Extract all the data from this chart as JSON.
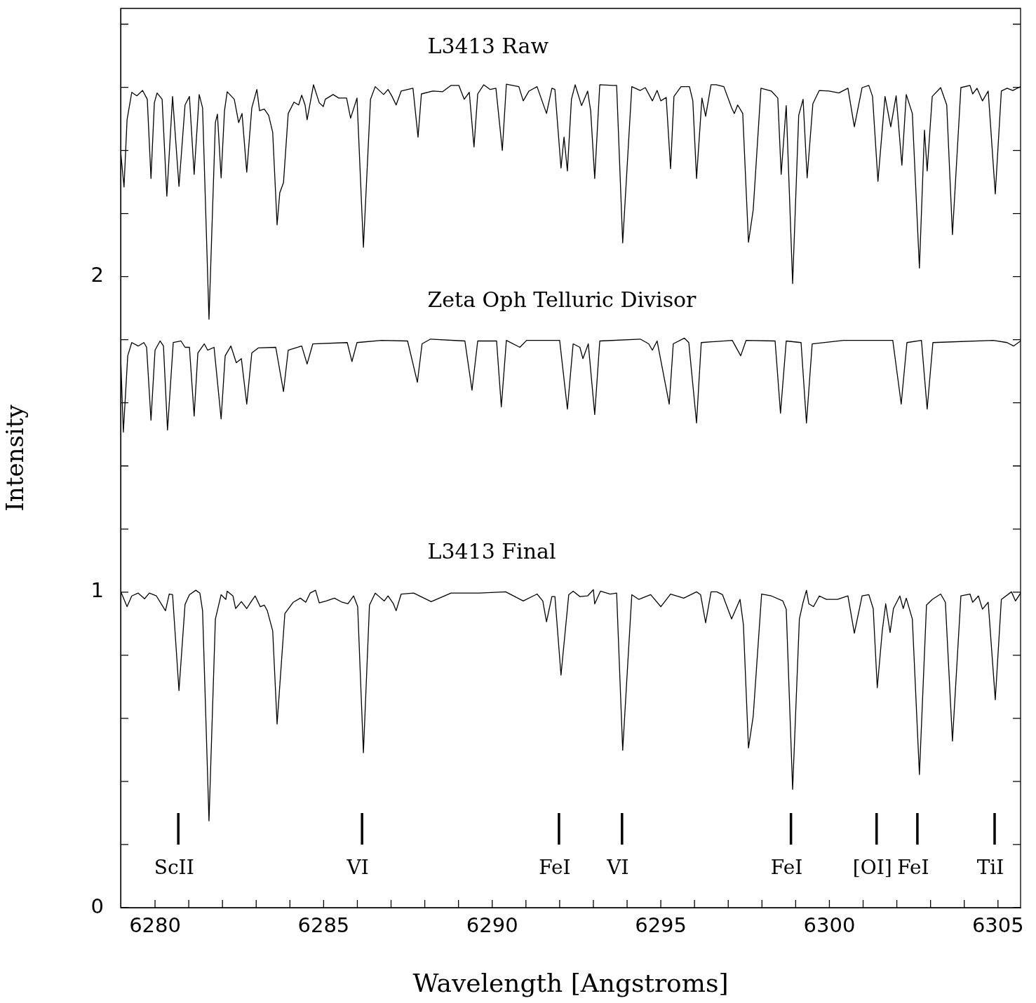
{
  "chart_data": {
    "type": "line",
    "xlabel": "Wavelength [Angstroms]",
    "ylabel": "Intensity",
    "xlim": [
      6278.98,
      6305.67
    ],
    "ylim": [
      0,
      2.85
    ],
    "xticks": [
      6280,
      {
        "value": 6281,
        "label": null
      },
      {
        "value": 6282,
        "label": null
      },
      {
        "value": 6283,
        "label": null
      },
      {
        "value": 6284,
        "label": null
      },
      6285,
      {
        "value": 6286,
        "label": null
      },
      {
        "value": 6287,
        "label": null
      },
      {
        "value": 6288,
        "label": null
      },
      {
        "value": 6289,
        "label": null
      },
      6290,
      {
        "value": 6291,
        "label": null
      },
      {
        "value": 6292,
        "label": null
      },
      {
        "value": 6293,
        "label": null
      },
      {
        "value": 6294,
        "label": null
      },
      6295,
      {
        "value": 6296,
        "label": null
      },
      {
        "value": 6297,
        "label": null
      },
      {
        "value": 6298,
        "label": null
      },
      {
        "value": 6299,
        "label": null
      },
      6300,
      {
        "value": 6301,
        "label": null
      },
      {
        "value": 6302,
        "label": null
      },
      {
        "value": 6303,
        "label": null
      },
      {
        "value": 6304,
        "label": null
      },
      6305
    ],
    "yticks": [
      0,
      {
        "value": 0.2,
        "label": null
      },
      {
        "value": 0.4,
        "label": null
      },
      {
        "value": 0.6,
        "label": null
      },
      {
        "value": 0.8,
        "label": null
      },
      1,
      {
        "value": 1.2,
        "label": null
      },
      {
        "value": 1.4,
        "label": null
      },
      {
        "value": 1.6,
        "label": null
      },
      {
        "value": 1.8,
        "label": null
      },
      2,
      {
        "value": 2.2,
        "label": null
      },
      {
        "value": 2.4,
        "label": null
      },
      {
        "value": 2.6,
        "label": null
      },
      {
        "value": 2.8,
        "label": null
      }
    ],
    "grid": false,
    "legend": false,
    "marker": "none",
    "line_style": "solid",
    "ref_lines": [
      {
        "axis": "x",
        "value": 6280.69,
        "label": "ScII"
      },
      {
        "axis": "x",
        "value": 6286.14,
        "label": "VI"
      },
      {
        "axis": "x",
        "value": 6291.98,
        "label": "FeI"
      },
      {
        "axis": "x",
        "value": 6293.85,
        "label": "VI"
      },
      {
        "axis": "x",
        "value": 6298.86,
        "label": "FeI"
      },
      {
        "axis": "x",
        "value": 6301.4,
        "label": "[OI]"
      },
      {
        "axis": "x",
        "value": 6302.61,
        "label": "FeI"
      },
      {
        "axis": "x",
        "value": 6304.9,
        "label": "TiI"
      }
    ],
    "series": [
      {
        "name": "L3413 Raw",
        "color": "#000000",
        "x": [
          6278.98,
          6279.08,
          6279.17,
          6279.31,
          6279.46,
          6279.63,
          6279.77,
          6279.88,
          6279.98,
          6280.06,
          6280.21,
          6280.35,
          6280.52,
          6280.71,
          6280.89,
          6281.02,
          6281.16,
          6281.31,
          6281.41,
          6281.6,
          6281.79,
          6281.85,
          6281.96,
          6282.06,
          6282.14,
          6282.35,
          6282.48,
          6282.58,
          6282.72,
          6282.87,
          6283.02,
          6283.1,
          6283.24,
          6283.37,
          6283.49,
          6283.62,
          6283.7,
          6283.81,
          6283.95,
          6284.12,
          6284.26,
          6284.35,
          6284.45,
          6284.51,
          6284.7,
          6284.87,
          6284.99,
          6285.05,
          6285.28,
          6285.45,
          6285.68,
          6285.8,
          6285.99,
          6286.18,
          6286.39,
          6286.53,
          6286.78,
          6286.91,
          6287.03,
          6287.15,
          6287.3,
          6287.65,
          6287.8,
          6287.9,
          6288.24,
          6288.53,
          6288.78,
          6289.01,
          6289.17,
          6289.32,
          6289.46,
          6289.57,
          6289.75,
          6289.94,
          6290.11,
          6290.3,
          6290.42,
          6290.79,
          6290.92,
          6291.09,
          6291.33,
          6291.61,
          6291.77,
          6291.86,
          6292.04,
          6292.13,
          6292.23,
          6292.35,
          6292.46,
          6292.65,
          6292.83,
          6292.92,
          6293.04,
          6293.19,
          6293.58,
          6293.69,
          6293.87,
          6294.14,
          6294.39,
          6294.54,
          6294.75,
          6294.89,
          6295,
          6295.16,
          6295.29,
          6295.39,
          6295.6,
          6295.85,
          6295.95,
          6296.06,
          6296.22,
          6296.33,
          6296.49,
          6296.64,
          6296.87,
          6297.1,
          6297.18,
          6297.28,
          6297.43,
          6297.6,
          6297.74,
          6297.97,
          6298.28,
          6298.47,
          6298.57,
          6298.72,
          6298.91,
          6299.09,
          6299.22,
          6299.34,
          6299.51,
          6299.7,
          6299.99,
          6300.28,
          6300.55,
          6300.74,
          6300.97,
          6301.17,
          6301.28,
          6301.44,
          6301.65,
          6301.82,
          6301.98,
          6302.15,
          6302.28,
          6302.46,
          6302.67,
          6302.82,
          6302.9,
          6303.05,
          6303.3,
          6303.48,
          6303.65,
          6303.9,
          6304.17,
          6304.25,
          6304.38,
          6304.54,
          6304.71,
          6304.92,
          6305.1,
          6305.27,
          6305.44,
          6305.67
        ],
        "values": [
          2.397,
          2.284,
          2.497,
          2.584,
          2.573,
          2.59,
          2.562,
          2.311,
          2.551,
          2.582,
          2.562,
          2.255,
          2.571,
          2.286,
          2.544,
          2.571,
          2.324,
          2.577,
          2.535,
          1.865,
          2.488,
          2.515,
          2.313,
          2.526,
          2.586,
          2.562,
          2.488,
          2.517,
          2.331,
          2.535,
          2.593,
          2.526,
          2.531,
          2.511,
          2.457,
          2.164,
          2.266,
          2.298,
          2.517,
          2.553,
          2.544,
          2.575,
          2.544,
          2.497,
          2.608,
          2.551,
          2.539,
          2.562,
          2.577,
          2.566,
          2.566,
          2.502,
          2.566,
          2.093,
          2.562,
          2.602,
          2.577,
          2.593,
          2.571,
          2.544,
          2.588,
          2.597,
          2.442,
          2.579,
          2.588,
          2.586,
          2.606,
          2.606,
          2.562,
          2.584,
          2.411,
          2.579,
          2.608,
          2.593,
          2.597,
          2.4,
          2.61,
          2.602,
          2.557,
          2.588,
          2.602,
          2.517,
          2.597,
          2.593,
          2.344,
          2.442,
          2.335,
          2.562,
          2.608,
          2.542,
          2.588,
          2.526,
          2.311,
          2.608,
          2.606,
          2.606,
          2.107,
          2.602,
          2.59,
          2.599,
          2.557,
          2.59,
          2.557,
          2.568,
          2.342,
          2.571,
          2.602,
          2.602,
          2.557,
          2.311,
          2.566,
          2.508,
          2.608,
          2.608,
          2.602,
          2.535,
          2.517,
          2.544,
          2.517,
          2.109,
          2.211,
          2.597,
          2.588,
          2.566,
          2.324,
          2.542,
          1.978,
          2.511,
          2.562,
          2.313,
          2.548,
          2.59,
          2.588,
          2.582,
          2.597,
          2.475,
          2.599,
          2.606,
          2.571,
          2.302,
          2.571,
          2.475,
          2.573,
          2.353,
          2.577,
          2.517,
          2.027,
          2.464,
          2.335,
          2.571,
          2.599,
          2.544,
          2.133,
          2.599,
          2.606,
          2.579,
          2.597,
          2.557,
          2.588,
          2.262,
          2.588,
          2.597,
          2.59,
          2.602
        ]
      },
      {
        "name": "Zeta Oph Telluric Divisor",
        "color": "#000000",
        "x": [
          6278.98,
          6279.06,
          6279.19,
          6279.31,
          6279.5,
          6279.67,
          6279.75,
          6279.88,
          6280,
          6280.15,
          6280.25,
          6280.37,
          6280.54,
          6280.77,
          6280.89,
          6281.02,
          6281.16,
          6281.27,
          6281.46,
          6281.56,
          6281.75,
          6281.96,
          6282.08,
          6282.25,
          6282.41,
          6282.56,
          6282.72,
          6282.87,
          6283.06,
          6283.58,
          6283.81,
          6283.95,
          6284.35,
          6284.51,
          6284.68,
          6285.7,
          6285.84,
          6285.99,
          6286.72,
          6287.49,
          6287.78,
          6287.92,
          6288.17,
          6289.19,
          6289.4,
          6289.57,
          6290.13,
          6290.27,
          6290.42,
          6290.82,
          6291.02,
          6292,
          6292.23,
          6292.4,
          6292.6,
          6292.69,
          6292.85,
          6293.04,
          6293.19,
          6294.39,
          6294.64,
          6294.75,
          6294.89,
          6295.25,
          6295.37,
          6295.7,
          6295.83,
          6296.06,
          6296.2,
          6297.12,
          6297.37,
          6297.53,
          6298.39,
          6298.55,
          6298.72,
          6299.16,
          6299.32,
          6299.49,
          6300.42,
          6300.94,
          6301.88,
          6302.13,
          6302.3,
          6302.73,
          6302.9,
          6303.07,
          6304.86,
          6305.27,
          6305.46,
          6305.67
        ],
        "values": [
          1.749,
          1.507,
          1.749,
          1.791,
          1.78,
          1.791,
          1.776,
          1.545,
          1.767,
          1.796,
          1.78,
          1.514,
          1.791,
          1.796,
          1.776,
          1.776,
          1.558,
          1.758,
          1.787,
          1.767,
          1.776,
          1.549,
          1.749,
          1.78,
          1.727,
          1.74,
          1.596,
          1.758,
          1.774,
          1.776,
          1.636,
          1.767,
          1.78,
          1.723,
          1.787,
          1.791,
          1.731,
          1.791,
          1.798,
          1.796,
          1.665,
          1.787,
          1.802,
          1.796,
          1.64,
          1.796,
          1.796,
          1.587,
          1.798,
          1.776,
          1.798,
          1.798,
          1.58,
          1.787,
          1.776,
          1.74,
          1.787,
          1.563,
          1.796,
          1.802,
          1.787,
          1.767,
          1.796,
          1.596,
          1.787,
          1.805,
          1.791,
          1.536,
          1.791,
          1.798,
          1.749,
          1.798,
          1.796,
          1.567,
          1.796,
          1.791,
          1.536,
          1.787,
          1.798,
          1.798,
          1.798,
          1.596,
          1.791,
          1.798,
          1.58,
          1.791,
          1.798,
          1.791,
          1.78,
          1.796
        ]
      },
      {
        "name": "L3413 Final",
        "color": "#000000",
        "x": [
          6278.98,
          6279.17,
          6279.31,
          6279.5,
          6279.69,
          6279.83,
          6280.04,
          6280.31,
          6280.42,
          6280.52,
          6280.71,
          6280.89,
          6281.02,
          6281.21,
          6281.33,
          6281.41,
          6281.6,
          6281.79,
          6281.96,
          6282.1,
          6282.14,
          6282.31,
          6282.39,
          6282.56,
          6282.72,
          6282.85,
          6282.97,
          6283.12,
          6283.24,
          6283.33,
          6283.49,
          6283.62,
          6283.85,
          6284.1,
          6284.31,
          6284.47,
          6284.6,
          6284.76,
          6284.87,
          6285.08,
          6285.32,
          6285.55,
          6285.72,
          6285.89,
          6286.01,
          6286.18,
          6286.36,
          6286.53,
          6286.7,
          6286.8,
          6286.91,
          6287.07,
          6287.15,
          6287.3,
          6287.67,
          6288.19,
          6288.78,
          6289.63,
          6290.4,
          6290.92,
          6291.33,
          6291.5,
          6291.61,
          6291.77,
          6291.86,
          6292.04,
          6292.27,
          6292.4,
          6292.6,
          6292.83,
          6293,
          6293.04,
          6293.21,
          6293.5,
          6293.69,
          6293.87,
          6294.14,
          6294.35,
          6294.7,
          6295,
          6295.29,
          6295.68,
          6296.06,
          6296.18,
          6296.33,
          6296.49,
          6296.66,
          6296.83,
          6297.1,
          6297.35,
          6297.45,
          6297.6,
          6297.74,
          6297.99,
          6298.28,
          6298.62,
          6298.72,
          6298.91,
          6299.11,
          6299.22,
          6299.32,
          6299.39,
          6299.53,
          6299.7,
          6299.91,
          6300.24,
          6300.55,
          6300.74,
          6300.97,
          6301.17,
          6301.3,
          6301.42,
          6301.57,
          6301.67,
          6301.8,
          6301.9,
          6302.09,
          6302.19,
          6302.28,
          6302.46,
          6302.67,
          6302.88,
          6303.05,
          6303.3,
          6303.44,
          6303.65,
          6303.9,
          6304.17,
          6304.25,
          6304.42,
          6304.54,
          6304.71,
          6304.92,
          6305.1,
          6305.4,
          6305.52,
          6305.67
        ],
        "values": [
          1.003,
          0.954,
          0.988,
          0.997,
          0.979,
          0.997,
          0.988,
          0.941,
          0.994,
          0.992,
          0.688,
          0.961,
          0.992,
          1.006,
          0.997,
          0.941,
          0.275,
          0.915,
          0.992,
          0.977,
          1.003,
          0.988,
          0.948,
          0.97,
          0.948,
          0.97,
          0.988,
          0.954,
          0.959,
          0.941,
          0.877,
          0.582,
          0.932,
          0.968,
          0.981,
          0.968,
          0.997,
          1.006,
          0.966,
          0.972,
          0.981,
          0.968,
          0.963,
          0.988,
          0.954,
          0.491,
          0.959,
          0.997,
          0.981,
          0.972,
          0.988,
          0.963,
          0.941,
          0.994,
          0.997,
          0.97,
          0.997,
          0.997,
          1.001,
          0.972,
          0.994,
          0.972,
          0.906,
          0.986,
          0.986,
          0.737,
          0.992,
          1.003,
          0.986,
          0.988,
          1.008,
          0.963,
          1.003,
          0.994,
          0.997,
          0.499,
          0.992,
          0.977,
          0.992,
          0.954,
          0.994,
          0.981,
          1.001,
          0.992,
          0.903,
          1.001,
          1.001,
          0.992,
          0.915,
          0.977,
          0.897,
          0.506,
          0.606,
          0.994,
          0.988,
          0.972,
          0.946,
          0.375,
          0.915,
          0.968,
          1.006,
          0.963,
          0.954,
          0.988,
          0.977,
          0.977,
          0.988,
          0.87,
          0.988,
          0.992,
          0.948,
          0.697,
          0.879,
          0.963,
          0.872,
          0.948,
          0.988,
          0.948,
          0.981,
          0.915,
          0.422,
          0.959,
          0.977,
          0.994,
          0.968,
          0.528,
          0.988,
          0.994,
          0.968,
          0.988,
          0.946,
          0.968,
          0.659,
          0.977,
          1.001,
          0.972,
          0.997
        ]
      }
    ]
  }
}
